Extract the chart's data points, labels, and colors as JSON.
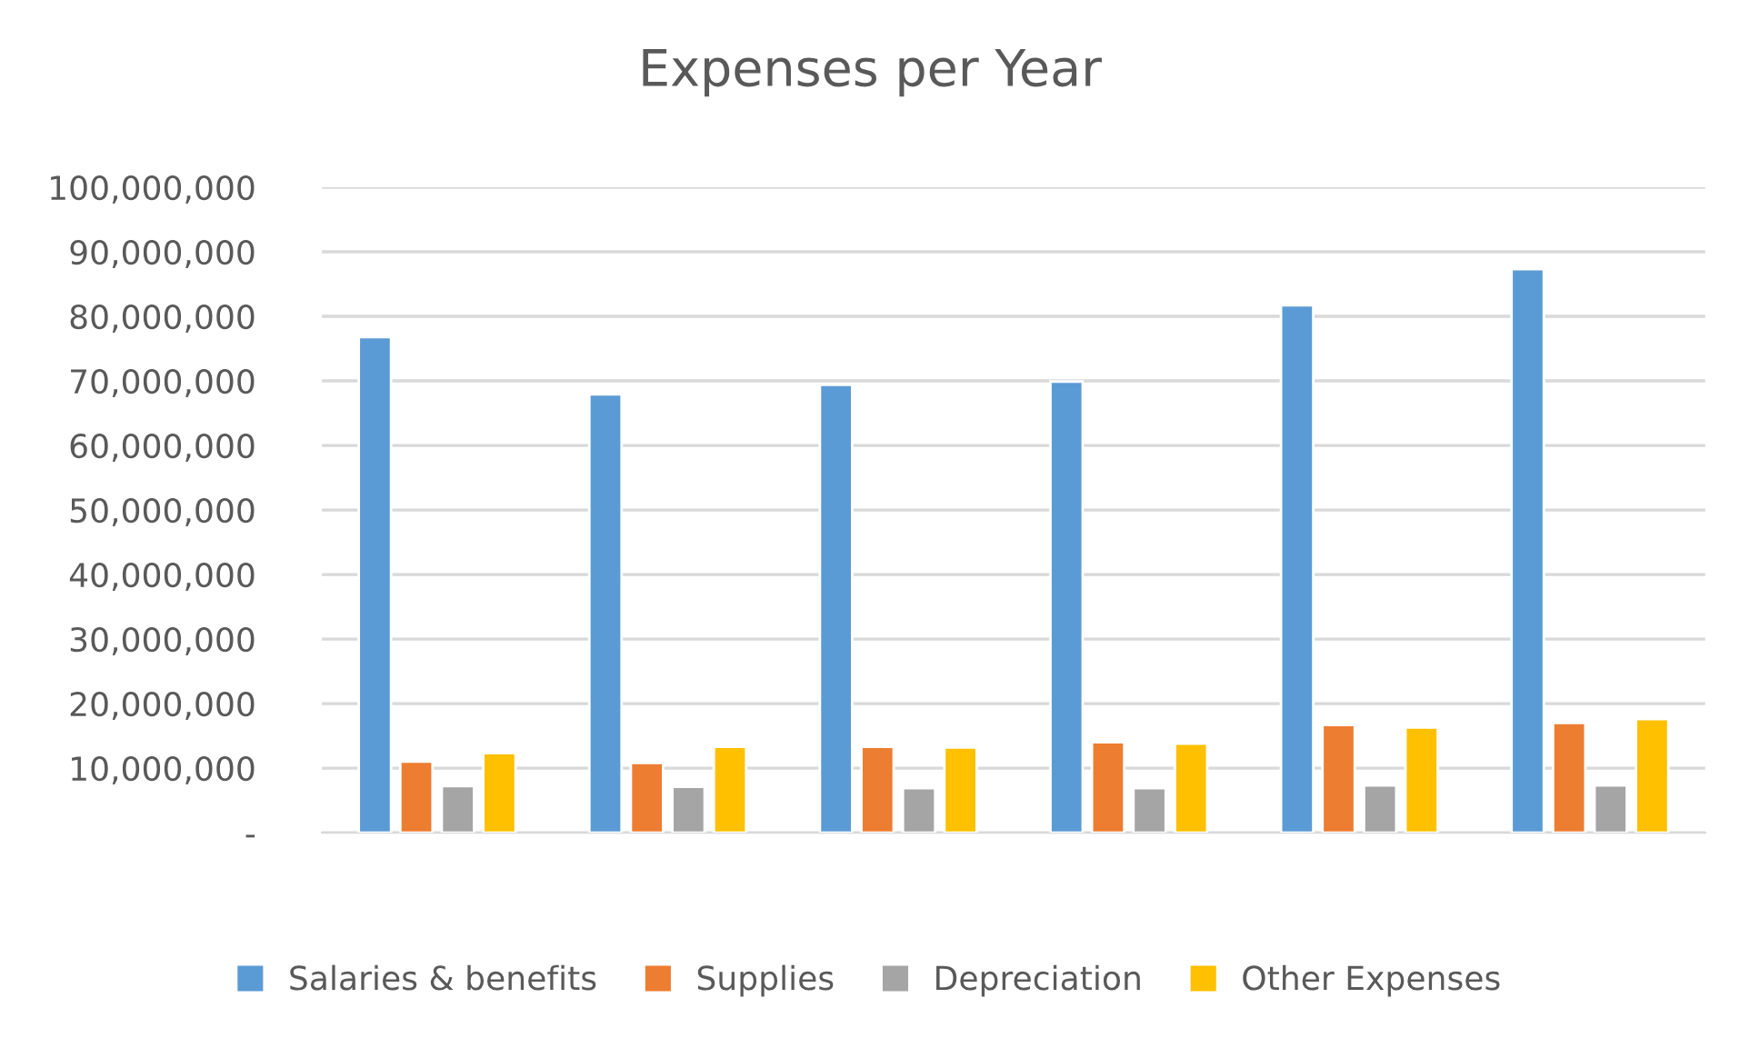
{
  "chart_data": {
    "type": "bar",
    "title": "Expenses per Year",
    "categories": [
      null,
      null,
      null,
      null,
      null,
      null
    ],
    "series": [
      {
        "name": "Salaries & benefits",
        "color": "#5b9bd5",
        "values": [
          76800000,
          67900000,
          69400000,
          69900000,
          81700000,
          87300000
        ]
      },
      {
        "name": "Supplies",
        "color": "#ed7d31",
        "values": [
          11000000,
          10800000,
          13300000,
          14000000,
          16700000,
          17000000
        ]
      },
      {
        "name": "Depreciation",
        "color": "#a5a5a5",
        "values": [
          7200000,
          7100000,
          6900000,
          6900000,
          7300000,
          7300000
        ]
      },
      {
        "name": "Other Expenses",
        "color": "#ffc000",
        "values": [
          12300000,
          13300000,
          13200000,
          13800000,
          16300000,
          17600000
        ]
      }
    ],
    "ylim": [
      0,
      100000000
    ],
    "yticks": [
      {
        "value": 0,
        "label": "-"
      },
      {
        "value": 10000000,
        "label": "10,000,000"
      },
      {
        "value": 20000000,
        "label": "20,000,000"
      },
      {
        "value": 30000000,
        "label": "30,000,000"
      },
      {
        "value": 40000000,
        "label": "40,000,000"
      },
      {
        "value": 50000000,
        "label": "50,000,000"
      },
      {
        "value": 60000000,
        "label": "60,000,000"
      },
      {
        "value": 70000000,
        "label": "70,000,000"
      },
      {
        "value": 80000000,
        "label": "80,000,000"
      },
      {
        "value": 90000000,
        "label": "90,000,000"
      },
      {
        "value": 100000000,
        "label": "100,000,000"
      }
    ],
    "grid": "y",
    "legend": "bottom"
  }
}
